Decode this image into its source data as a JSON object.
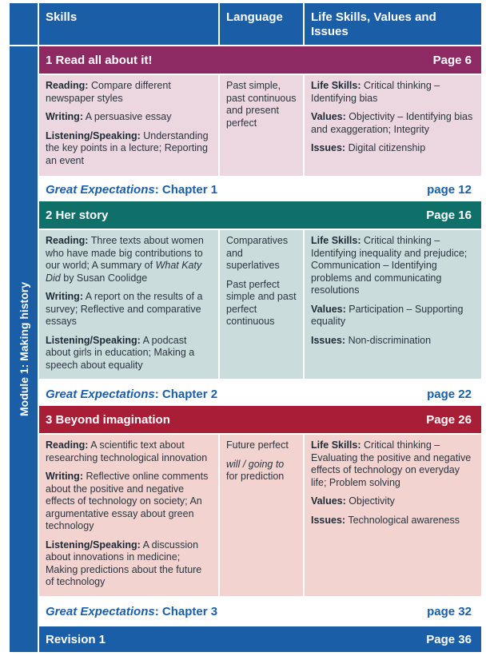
{
  "header": {
    "skills": "Skills",
    "language": "Language",
    "life_skills": "Life Skills, Values and Issues"
  },
  "module": {
    "label": "Module 1: Making history"
  },
  "units": [
    {
      "title": "1 Read all about it!",
      "page": "Page 6",
      "skills": {
        "reading_label": "Reading:",
        "reading": "Compare different newspaper styles",
        "writing_label": "Writing:",
        "writing": "A persuasive essay",
        "listening_label": "Listening/Speaking:",
        "listening": "Understanding the key points in a lecture; Reporting an event"
      },
      "language": {
        "line1": "Past simple, past continuous and present perfect"
      },
      "life": {
        "life_label": "Life Skills:",
        "life": "Critical thinking – Identifying bias",
        "values_label": "Values:",
        "values": "Objectivity – Identifying bias and exaggeration; Integrity",
        "issues_label": "Issues:",
        "issues": "Digital citizenship"
      },
      "ge": {
        "title": "Great Expectations",
        "chapter": ": Chapter 1",
        "page": "page 12"
      }
    },
    {
      "title": "2 Her story",
      "page": "Page 16",
      "skills": {
        "reading_label": "Reading:",
        "reading_a": "Three texts about women who have made big contributions to our world; A summary of ",
        "reading_book": "What Katy Did",
        "reading_b": " by Susan Coolidge",
        "writing_label": "Writing:",
        "writing": "A report on the results of a survey; Reflective and comparative essays",
        "listening_label": "Listening/Speaking:",
        "listening": "A podcast about girls in education; Making a speech about equality"
      },
      "language": {
        "line1": "Comparatives and superlatives",
        "line2": "Past perfect simple and past perfect continuous"
      },
      "life": {
        "life_label": "Life Skills:",
        "life": "Critical thinking – Identifying inequality and prejudice; Communication – Identifying problems and communicating resolutions",
        "values_label": "Values:",
        "values": "Participation – Supporting equality",
        "issues_label": "Issues:",
        "issues": "Non-discrimination"
      },
      "ge": {
        "title": "Great Expectations",
        "chapter": ": Chapter 2",
        "page": "page 22"
      }
    },
    {
      "title": "3 Beyond imagination",
      "page": "Page 26",
      "skills": {
        "reading_label": "Reading:",
        "reading": "A scientific text about researching technological innovation",
        "writing_label": "Writing:",
        "writing": "Reflective online comments about the positive and negative effects of technology on society; An argumentative essay about green technology",
        "listening_label": "Listening/Speaking:",
        "listening": "A discussion about innovations in medicine; Making predictions about the future of technology"
      },
      "language": {
        "line1": "Future perfect",
        "line2_italic": "will / going to",
        "line2_rest": " for prediction"
      },
      "life": {
        "life_label": "Life Skills:",
        "life": "Critical thinking – Evaluating the positive and negative effects of technology on everyday life; Problem solving",
        "values_label": "Values:",
        "values": "Objectivity",
        "issues_label": "Issues:",
        "issues": "Technological awareness"
      },
      "ge": {
        "title": "Great Expectations",
        "chapter": ": Chapter 3",
        "page": "page 32"
      }
    }
  ],
  "revision": {
    "title": "Revision 1",
    "page": "Page 36"
  },
  "colors": {
    "header_blue": "#1b5ea8",
    "unit1": "#8e2a63",
    "unit2": "#0e7068",
    "unit3": "#a81e37",
    "unit1_bg": "#ecd6df",
    "unit2_bg": "#cbdcdc",
    "unit3_bg": "#f2d3cf"
  }
}
